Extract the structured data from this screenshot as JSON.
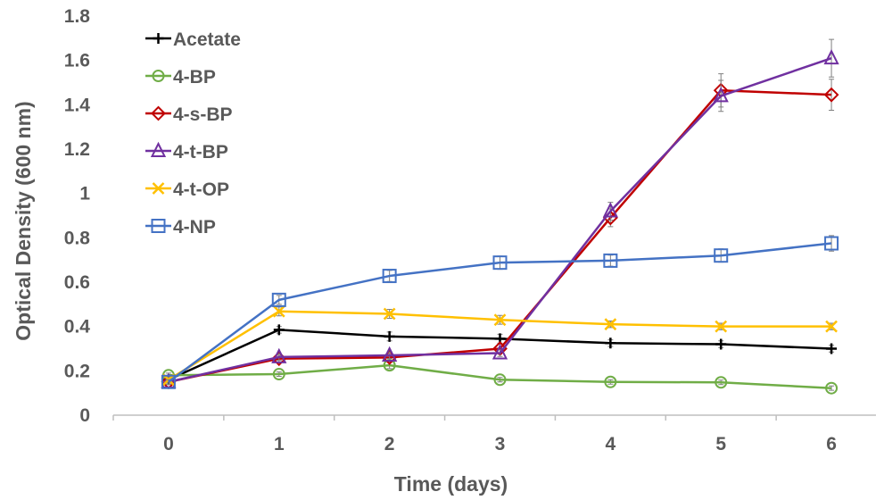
{
  "chart_data": {
    "type": "line",
    "title": "",
    "xlabel": "Time (days)",
    "ylabel": "Optical Density (600 nm)",
    "x": [
      0,
      1,
      2,
      3,
      4,
      5,
      6
    ],
    "x_tick_labels": [
      "0",
      "1",
      "2",
      "3",
      "4",
      "5",
      "6"
    ],
    "ylim": [
      0,
      1.8
    ],
    "y_tick_labels": [
      "0",
      "0.2",
      "0.4",
      "0.6",
      "0.8",
      "1",
      "1.2",
      "1.4",
      "1.6",
      "1.8"
    ],
    "grid": false,
    "legend_position": "top-left",
    "series": [
      {
        "name": "Acetate",
        "color": "#000000",
        "marker": "plus",
        "values": [
          0.16,
          0.385,
          0.355,
          0.345,
          0.325,
          0.32,
          0.3
        ],
        "errors": [
          0.01,
          0.015,
          0.02,
          0.02,
          0.015,
          0.015,
          0.015
        ]
      },
      {
        "name": "4-BP",
        "color": "#70AD47",
        "marker": "circle",
        "values": [
          0.18,
          0.185,
          0.225,
          0.16,
          0.15,
          0.148,
          0.122
        ],
        "errors": [
          0.01,
          0.01,
          0.015,
          0.01,
          0.01,
          0.01,
          0.01
        ]
      },
      {
        "name": "4-s-BP",
        "color": "#C00000",
        "marker": "diamond",
        "values": [
          0.15,
          0.255,
          0.26,
          0.3,
          0.89,
          1.465,
          1.445
        ],
        "errors": [
          0.01,
          0.015,
          0.015,
          0.02,
          0.04,
          0.075,
          0.07
        ]
      },
      {
        "name": "4-t-BP",
        "color": "#7030A0",
        "marker": "triangle",
        "values": [
          0.15,
          0.262,
          0.27,
          0.28,
          0.92,
          1.44,
          1.61
        ],
        "errors": [
          0.01,
          0.015,
          0.015,
          0.015,
          0.04,
          0.07,
          0.085
        ]
      },
      {
        "name": "4-t-OP",
        "color": "#FFC000",
        "marker": "x",
        "values": [
          0.16,
          0.468,
          0.457,
          0.43,
          0.41,
          0.4,
          0.4
        ],
        "errors": [
          0.01,
          0.02,
          0.02,
          0.02,
          0.015,
          0.015,
          0.015
        ]
      },
      {
        "name": "4-NP",
        "color": "#4472C4",
        "marker": "square",
        "values": [
          0.15,
          0.52,
          0.628,
          0.688,
          0.697,
          0.72,
          0.775
        ],
        "errors": [
          0.01,
          0.02,
          0.025,
          0.03,
          0.025,
          0.03,
          0.035
        ]
      }
    ]
  }
}
